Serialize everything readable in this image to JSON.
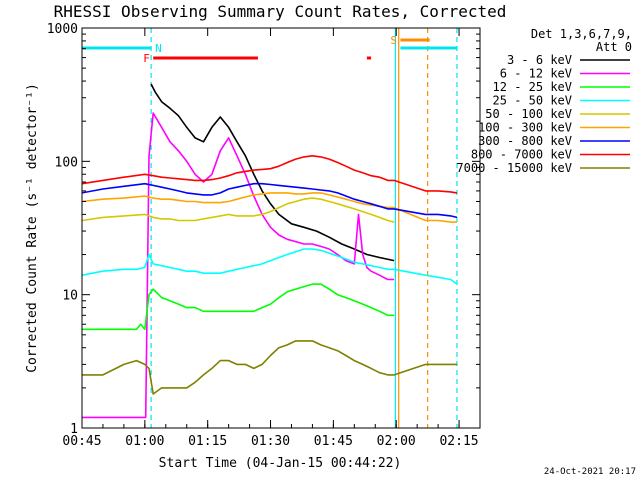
{
  "chart_data": {
    "type": "line",
    "title": "RHESSI Observing Summary Count Rates, Corrected",
    "xlabel": "Start Time (04-Jan-15 00:44:22)",
    "ylabel": "Corrected Count Rate (s⁻¹ detector⁻¹)",
    "yscale": "log",
    "ylim": [
      1,
      1000
    ],
    "xlim_minutes_since_0000": [
      45,
      140
    ],
    "x_ticks": [
      {
        "t": 45,
        "label": "00:45"
      },
      {
        "t": 60,
        "label": "01:00"
      },
      {
        "t": 75,
        "label": "01:15"
      },
      {
        "t": 90,
        "label": "01:30"
      },
      {
        "t": 105,
        "label": "01:45"
      },
      {
        "t": 120,
        "label": "02:00"
      },
      {
        "t": 135,
        "label": "02:15"
      }
    ],
    "y_ticks": [
      {
        "v": 1,
        "label": "1"
      },
      {
        "v": 10,
        "label": "10"
      },
      {
        "v": 100,
        "label": "100"
      },
      {
        "v": 1000,
        "label": "1000"
      }
    ],
    "legend": {
      "header": [
        "Det 1,3,6,7,9,",
        "Att 0"
      ],
      "placement": "right"
    },
    "series": [
      {
        "name": "3 - 6 keV",
        "color": "#000000",
        "x": [
          61.5,
          62.5,
          64,
          66,
          68,
          70,
          72,
          74,
          76,
          78,
          80,
          82,
          84,
          86,
          88,
          90,
          92,
          95,
          98,
          101,
          104,
          107,
          110,
          113,
          116,
          119.5
        ],
        "y": [
          380,
          330,
          280,
          250,
          220,
          180,
          150,
          140,
          180,
          215,
          180,
          140,
          110,
          80,
          60,
          48,
          40,
          34,
          32,
          30,
          27,
          24,
          22,
          20,
          19,
          18
        ]
      },
      {
        "name": "6 - 12 keV",
        "color": "#ff00ff",
        "x": [
          45,
          46,
          60.2,
          61,
          62,
          64,
          66,
          68,
          70,
          72,
          74,
          76,
          78,
          80,
          82,
          84,
          86,
          88,
          90,
          92,
          94,
          96,
          98,
          100,
          102,
          104,
          106,
          108,
          110,
          111,
          112,
          113,
          114,
          116,
          118,
          119.5
        ],
        "y": [
          1.2,
          1.2,
          1.2,
          110,
          230,
          180,
          140,
          120,
          100,
          80,
          70,
          80,
          120,
          150,
          110,
          80,
          55,
          40,
          32,
          28,
          26,
          25,
          24,
          24,
          23,
          22,
          20,
          18,
          17,
          40,
          20,
          16,
          15,
          14,
          13,
          13
        ]
      },
      {
        "name": "12 - 25 keV",
        "color": "#00ff00",
        "x": [
          45,
          58,
          59,
          60,
          61,
          62,
          64,
          66,
          68,
          70,
          72,
          74,
          76,
          78,
          80,
          82,
          84,
          86,
          88,
          90,
          92,
          94,
          96,
          98,
          100,
          102,
          104,
          106,
          108,
          110,
          112,
          114,
          116,
          118,
          119.5
        ],
        "y": [
          5.5,
          5.5,
          6,
          5.5,
          10,
          11,
          9.5,
          9,
          8.5,
          8,
          8,
          7.5,
          7.5,
          7.5,
          7.5,
          7.5,
          7.5,
          7.5,
          8,
          8.5,
          9.5,
          10.5,
          11,
          11.5,
          12,
          12,
          11,
          10,
          9.5,
          9,
          8.5,
          8,
          7.5,
          7,
          7
        ]
      },
      {
        "name": "25 - 50 keV",
        "color": "#00ffff",
        "x": [
          45,
          50,
          55,
          58,
          60,
          61,
          62,
          64,
          66,
          68,
          70,
          72,
          74,
          76,
          78,
          80,
          82,
          84,
          86,
          88,
          90,
          92,
          94,
          96,
          98,
          100,
          102,
          104,
          106,
          108,
          110,
          112,
          114,
          116,
          118,
          119.5,
          127,
          130,
          133,
          134.5
        ],
        "y": [
          14,
          15,
          15.5,
          15.5,
          16,
          20,
          17,
          16.5,
          16,
          15.5,
          15,
          15,
          14.5,
          14.5,
          14.5,
          15,
          15.5,
          16,
          16.5,
          17,
          18,
          19,
          20,
          21,
          22,
          22,
          21.5,
          20.5,
          19.5,
          18.5,
          17.5,
          17,
          16.5,
          16,
          15.5,
          15.5,
          14,
          13.5,
          13,
          12
        ]
      },
      {
        "name": "50 - 100 keV",
        "color": "#d4c800",
        "x": [
          45,
          50,
          55,
          60,
          62,
          64,
          66,
          68,
          70,
          72,
          74,
          76,
          78,
          80,
          82,
          84,
          86,
          88,
          90,
          92,
          94,
          96,
          98,
          100,
          102,
          104,
          106,
          108,
          110,
          112,
          114,
          116,
          118,
          119.5
        ],
        "y": [
          36,
          38,
          39,
          40,
          38,
          37,
          37,
          36,
          36,
          36,
          37,
          38,
          39,
          40,
          39,
          39,
          39,
          40,
          42,
          45,
          48,
          50,
          52,
          53,
          52,
          50,
          48,
          46,
          44,
          42,
          40,
          38,
          36,
          35
        ]
      },
      {
        "name": "100 - 300 keV",
        "color": "#ffa500",
        "x": [
          45,
          50,
          55,
          60,
          62,
          64,
          66,
          68,
          70,
          72,
          74,
          76,
          78,
          80,
          82,
          84,
          86,
          88,
          90,
          92,
          94,
          96,
          98,
          100,
          102,
          104,
          106,
          108,
          110,
          112,
          114,
          116,
          118,
          119.5,
          127,
          130,
          133,
          134.5
        ],
        "y": [
          50,
          52,
          53,
          55,
          53,
          52,
          52,
          51,
          50,
          50,
          49,
          49,
          49,
          50,
          52,
          54,
          56,
          57,
          58,
          58,
          58,
          57,
          57,
          58,
          58,
          56,
          54,
          52,
          50,
          48,
          47,
          46,
          45,
          45,
          36,
          36,
          35,
          35
        ]
      },
      {
        "name": "300 - 800 keV",
        "color": "#0000ff",
        "x": [
          45,
          50,
          55,
          60,
          62,
          64,
          66,
          68,
          70,
          72,
          74,
          76,
          78,
          80,
          82,
          84,
          86,
          88,
          90,
          92,
          94,
          96,
          98,
          100,
          102,
          104,
          106,
          108,
          110,
          112,
          114,
          116,
          118,
          119.5,
          127,
          130,
          133,
          134.5
        ],
        "y": [
          58,
          62,
          65,
          68,
          66,
          64,
          62,
          60,
          58,
          57,
          56,
          56,
          58,
          62,
          64,
          66,
          68,
          68,
          67,
          66,
          65,
          64,
          63,
          62,
          61,
          60,
          58,
          55,
          52,
          50,
          48,
          46,
          44,
          44,
          40,
          40,
          39,
          38
        ]
      },
      {
        "name": "800 - 7000 keV",
        "color": "#ff0000",
        "x": [
          45,
          50,
          55,
          60,
          62,
          64,
          66,
          68,
          70,
          72,
          74,
          76,
          78,
          80,
          82,
          84,
          86,
          88,
          90,
          92,
          94,
          96,
          98,
          100,
          102,
          104,
          106,
          108,
          110,
          112,
          114,
          116,
          118,
          119.5,
          127,
          130,
          133,
          134.5
        ],
        "y": [
          68,
          72,
          76,
          80,
          78,
          76,
          75,
          74,
          73,
          72,
          72,
          73,
          75,
          78,
          82,
          84,
          86,
          87,
          88,
          92,
          98,
          104,
          108,
          110,
          108,
          104,
          98,
          92,
          86,
          82,
          78,
          76,
          72,
          72,
          60,
          60,
          59,
          58
        ]
      },
      {
        "name": "7000 - 15000 keV",
        "color": "#808000",
        "x": [
          45,
          50,
          55,
          58,
          60,
          61,
          62,
          64,
          66,
          68,
          70,
          72,
          74,
          76,
          78,
          80,
          82,
          84,
          86,
          88,
          90,
          92,
          94,
          96,
          98,
          100,
          102,
          104,
          106,
          108,
          110,
          112,
          114,
          116,
          118,
          119.5,
          127,
          130,
          133,
          134.5
        ],
        "y": [
          2.5,
          2.5,
          3,
          3.2,
          3,
          2.8,
          1.8,
          2,
          2,
          2,
          2,
          2.2,
          2.5,
          2.8,
          3.2,
          3.2,
          3,
          3,
          2.8,
          3,
          3.5,
          4,
          4.2,
          4.5,
          4.5,
          4.5,
          4.2,
          4,
          3.8,
          3.5,
          3.2,
          3,
          2.8,
          2.6,
          2.5,
          2.5,
          3,
          3,
          3,
          3
        ]
      }
    ],
    "state_bars": [
      {
        "label": "N",
        "color": "#00e5ee",
        "segments": [
          [
            45,
            61.5
          ],
          [
            121,
            134.5
          ]
        ]
      },
      {
        "label": "F",
        "color": "#ff0000",
        "segments": [
          [
            62,
            87
          ],
          [
            113,
            114
          ]
        ]
      },
      {
        "label": "S",
        "color": "#ff8c00",
        "segments": [
          [
            121,
            128
          ]
        ]
      }
    ],
    "vertical_markers": [
      {
        "t": 61.5,
        "color": "#00e5ee",
        "style": "dashed"
      },
      {
        "t": 119.8,
        "color": "#00e5ee",
        "style": "solid"
      },
      {
        "t": 120.6,
        "color": "#ff8c00",
        "style": "solid"
      },
      {
        "t": 127.5,
        "color": "#ff8c00",
        "style": "dashed"
      },
      {
        "t": 134.5,
        "color": "#00e5ee",
        "style": "dashed"
      }
    ],
    "grid": false
  },
  "footer": {
    "timestamp": "24-Oct-2021 20:17"
  }
}
